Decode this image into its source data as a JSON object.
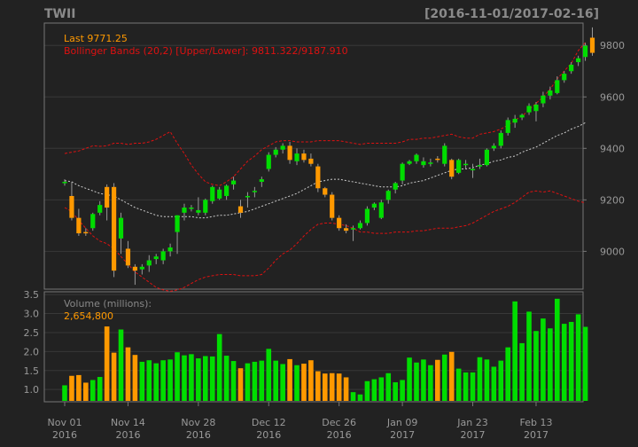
{
  "chart_data": {
    "type": "candlestick",
    "symbol": "TWII",
    "date_range": "[2016-11-01/2017-02-16]",
    "last_label": "Last 9771.25",
    "bb_label": "Bollinger Bands (20,2) [Upper/Lower]: 9811.322/9187.910",
    "volume_label": "Volume (millions):",
    "volume_value": "2,654,800",
    "price_ylim": [
      8860,
      9880
    ],
    "price_ticks": [
      "9000",
      "9200",
      "9400",
      "9600",
      "9800"
    ],
    "volume_ylim": [
      0.7,
      3.55
    ],
    "volume_ticks": [
      "1.0",
      "1.5",
      "2.0",
      "2.5",
      "3.0",
      "3.5"
    ],
    "x_ticks": [
      {
        "i": 0,
        "top": "Nov 01",
        "bottom": "2016"
      },
      {
        "i": 9,
        "top": "Nov 14",
        "bottom": "2016"
      },
      {
        "i": 19,
        "top": "Nov 28",
        "bottom": "2016"
      },
      {
        "i": 29,
        "top": "Dec 12",
        "bottom": "2016"
      },
      {
        "i": 39,
        "top": "Dec 26",
        "bottom": "2016"
      },
      {
        "i": 48,
        "top": "Jan 09",
        "bottom": "2017"
      },
      {
        "i": 58,
        "top": "Jan 23",
        "bottom": "2017"
      },
      {
        "i": 67,
        "top": "Feb 13",
        "bottom": "2017"
      }
    ],
    "colors": {
      "up": "#00dd00",
      "down": "#ff9900",
      "band": "#dd1111",
      "ma": "#cccccc",
      "grid": "#383838",
      "frame": "#777777"
    },
    "candles": [
      [
        9270,
        9280,
        9255,
        9270
      ],
      [
        9215,
        9270,
        9120,
        9130
      ],
      [
        9130,
        9165,
        9060,
        9070
      ],
      [
        9075,
        9090,
        9060,
        9070
      ],
      [
        9090,
        9150,
        9080,
        9145
      ],
      [
        9150,
        9195,
        9140,
        9180
      ],
      [
        9250,
        9260,
        9120,
        9170
      ],
      [
        9250,
        9265,
        8900,
        8925
      ],
      [
        9050,
        9150,
        8990,
        9130
      ],
      [
        9010,
        9040,
        8935,
        8945
      ],
      [
        8940,
        8950,
        8870,
        8925
      ],
      [
        8930,
        8950,
        8910,
        8940
      ],
      [
        8945,
        8985,
        8920,
        8965
      ],
      [
        8970,
        8990,
        8950,
        8980
      ],
      [
        8965,
        9010,
        8950,
        9000
      ],
      [
        9000,
        9030,
        8980,
        9015
      ],
      [
        9075,
        9140,
        8990,
        9140
      ],
      [
        9150,
        9185,
        9120,
        9170
      ],
      [
        9165,
        9180,
        9155,
        9170
      ],
      [
        9150,
        9210,
        9140,
        9160
      ],
      [
        9150,
        9205,
        9140,
        9200
      ],
      [
        9195,
        9255,
        9185,
        9250
      ],
      [
        9205,
        9250,
        9200,
        9240
      ],
      [
        9215,
        9260,
        9200,
        9255
      ],
      [
        9260,
        9290,
        9240,
        9275
      ],
      [
        9175,
        9200,
        9130,
        9150
      ],
      [
        9215,
        9230,
        9170,
        9215
      ],
      [
        9230,
        9250,
        9210,
        9235
      ],
      [
        9270,
        9290,
        9250,
        9280
      ],
      [
        9320,
        9385,
        9310,
        9375
      ],
      [
        9375,
        9405,
        9365,
        9395
      ],
      [
        9395,
        9420,
        9380,
        9410
      ],
      [
        9410,
        9425,
        9340,
        9355
      ],
      [
        9350,
        9400,
        9335,
        9380
      ],
      [
        9380,
        9395,
        9345,
        9355
      ],
      [
        9360,
        9380,
        9330,
        9340
      ],
      [
        9330,
        9340,
        9230,
        9245
      ],
      [
        9245,
        9250,
        9210,
        9220
      ],
      [
        9220,
        9230,
        9120,
        9130
      ],
      [
        9130,
        9140,
        9080,
        9090
      ],
      [
        9090,
        9105,
        9070,
        9080
      ],
      [
        9085,
        9100,
        9040,
        9090
      ],
      [
        9090,
        9120,
        9085,
        9110
      ],
      [
        9110,
        9175,
        9100,
        9165
      ],
      [
        9170,
        9190,
        9160,
        9185
      ],
      [
        9130,
        9200,
        9125,
        9190
      ],
      [
        9200,
        9240,
        9185,
        9235
      ],
      [
        9240,
        9270,
        9225,
        9265
      ],
      [
        9275,
        9345,
        9260,
        9340
      ],
      [
        9340,
        9355,
        9335,
        9350
      ],
      [
        9350,
        9380,
        9340,
        9375
      ],
      [
        9335,
        9365,
        9325,
        9350
      ],
      [
        9340,
        9360,
        9330,
        9345
      ],
      [
        9360,
        9370,
        9345,
        9355
      ],
      [
        9340,
        9420,
        9330,
        9410
      ],
      [
        9355,
        9360,
        9280,
        9290
      ],
      [
        9305,
        9360,
        9300,
        9355
      ],
      [
        9340,
        9355,
        9320,
        9340
      ],
      [
        9320,
        9340,
        9285,
        9320
      ],
      [
        9330,
        9360,
        9320,
        9335
      ],
      [
        9335,
        9400,
        9330,
        9395
      ],
      [
        9400,
        9420,
        9390,
        9410
      ],
      [
        9410,
        9470,
        9400,
        9460
      ],
      [
        9460,
        9520,
        9450,
        9510
      ],
      [
        9500,
        9530,
        9480,
        9515
      ],
      [
        9520,
        9535,
        9510,
        9530
      ],
      [
        9540,
        9575,
        9530,
        9565
      ],
      [
        9545,
        9580,
        9505,
        9570
      ],
      [
        9575,
        9620,
        9560,
        9605
      ],
      [
        9605,
        9640,
        9590,
        9625
      ],
      [
        9615,
        9680,
        9610,
        9665
      ],
      [
        9665,
        9700,
        9655,
        9690
      ],
      [
        9700,
        9735,
        9690,
        9725
      ],
      [
        9735,
        9760,
        9720,
        9750
      ],
      [
        9755,
        9810,
        9740,
        9800
      ],
      [
        9830,
        9870,
        9760,
        9771.25
      ]
    ],
    "volume": [
      1.11,
      1.36,
      1.38,
      1.18,
      1.25,
      1.33,
      2.66,
      1.97,
      2.58,
      2.11,
      1.91,
      1.73,
      1.77,
      1.69,
      1.77,
      1.79,
      1.98,
      1.9,
      1.93,
      1.82,
      1.88,
      1.87,
      2.46,
      1.89,
      1.75,
      1.56,
      1.69,
      1.73,
      1.76,
      2.07,
      1.76,
      1.67,
      1.8,
      1.64,
      1.68,
      1.77,
      1.48,
      1.42,
      1.43,
      1.42,
      1.32,
      0.93,
      0.87,
      1.22,
      1.27,
      1.32,
      1.43,
      1.19,
      1.25,
      1.84,
      1.71,
      1.79,
      1.64,
      1.78,
      1.92,
      1.99,
      1.55,
      1.45,
      1.45,
      1.85,
      1.79,
      1.6,
      1.76,
      2.11,
      3.32,
      2.22,
      3.05,
      2.54,
      2.87,
      2.61,
      3.39,
      2.73,
      2.78,
      2.98,
      2.65
    ],
    "bb_upper": [
      9380,
      9385,
      9390,
      9400,
      9410,
      9408,
      9410,
      9420,
      9420,
      9415,
      9420,
      9420,
      9425,
      9435,
      9450,
      9465,
      9420,
      9380,
      9335,
      9300,
      9270,
      9260,
      9255,
      9270,
      9290,
      9320,
      9350,
      9370,
      9395,
      9410,
      9425,
      9430,
      9430,
      9425,
      9425,
      9425,
      9430,
      9430,
      9430,
      9430,
      9425,
      9420,
      9415,
      9420,
      9420,
      9420,
      9420,
      9420,
      9425,
      9435,
      9435,
      9440,
      9440,
      9445,
      9450,
      9455,
      9445,
      9440,
      9440,
      9455,
      9460,
      9465,
      9475,
      9490,
      9510,
      9525,
      9550,
      9575,
      9600,
      9630,
      9670,
      9700,
      9730,
      9780,
      9811.322
    ],
    "bb_mid": [
      9275,
      9270,
      9255,
      9245,
      9235,
      9225,
      9220,
      9215,
      9200,
      9185,
      9170,
      9160,
      9150,
      9140,
      9135,
      9135,
      9135,
      9135,
      9135,
      9130,
      9130,
      9135,
      9140,
      9140,
      9145,
      9150,
      9155,
      9165,
      9175,
      9185,
      9195,
      9205,
      9215,
      9225,
      9240,
      9255,
      9270,
      9275,
      9280,
      9280,
      9275,
      9270,
      9265,
      9260,
      9255,
      9250,
      9250,
      9250,
      9255,
      9265,
      9270,
      9275,
      9285,
      9295,
      9305,
      9315,
      9320,
      9320,
      9325,
      9335,
      9340,
      9350,
      9355,
      9365,
      9370,
      9385,
      9395,
      9405,
      9420,
      9435,
      9450,
      9460,
      9475,
      9485,
      9500
    ],
    "bb_lower": [
      9170,
      9155,
      9120,
      9090,
      9060,
      9040,
      9030,
      9010,
      8980,
      8950,
      8920,
      8900,
      8880,
      8860,
      8850,
      8845,
      8850,
      8860,
      8875,
      8890,
      8900,
      8905,
      8910,
      8910,
      8910,
      8905,
      8905,
      8905,
      8910,
      8935,
      8965,
      8990,
      9005,
      9030,
      9060,
      9085,
      9105,
      9110,
      9110,
      9105,
      9100,
      9090,
      9075,
      9075,
      9070,
      9070,
      9070,
      9075,
      9075,
      9075,
      9080,
      9080,
      9085,
      9090,
      9090,
      9090,
      9095,
      9100,
      9110,
      9125,
      9140,
      9155,
      9165,
      9175,
      9190,
      9210,
      9230,
      9235,
      9230,
      9235,
      9225,
      9215,
      9205,
      9195,
      9187.91
    ]
  }
}
